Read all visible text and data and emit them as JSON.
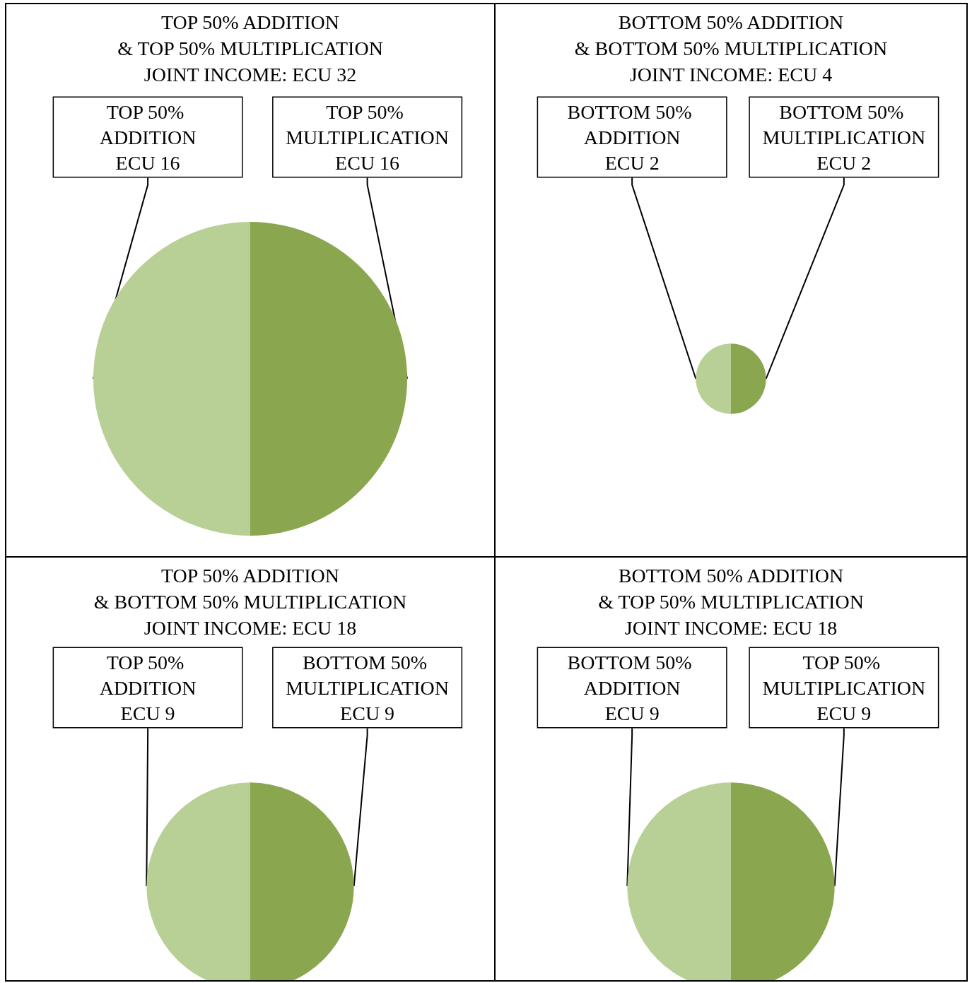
{
  "chart_data": [
    {
      "type": "pie",
      "title": "TOP 50% ADDITION\n& TOP 50% MULTIPLICATION\nJOINT INCOME: ECU 32",
      "categories": [
        "TOP 50% ADDITION",
        "TOP 50% MULTIPLICATION"
      ],
      "values": [
        16,
        16
      ],
      "value_labels": [
        "ECU 16",
        "ECU 16"
      ],
      "colors": [
        "#b8cf96",
        "#8aa64f"
      ],
      "legend": false
    },
    {
      "type": "pie",
      "title": "BOTTOM 50% ADDITION\n& BOTTOM 50% MULTIPLICATION\nJOINT INCOME: ECU 4",
      "categories": [
        "BOTTOM 50% ADDITION",
        "BOTTOM 50% MULTIPLICATION"
      ],
      "values": [
        2,
        2
      ],
      "value_labels": [
        "ECU 2",
        "ECU 2"
      ],
      "colors": [
        "#b8cf96",
        "#8aa64f"
      ],
      "legend": false
    },
    {
      "type": "pie",
      "title": "TOP 50% ADDITION\n& BOTTOM 50% MULTIPLICATION\nJOINT INCOME: ECU 18",
      "categories": [
        "TOP 50% ADDITION",
        "BOTTOM 50% MULTIPLICATION"
      ],
      "values": [
        9,
        9
      ],
      "value_labels": [
        "ECU 9",
        "ECU 9"
      ],
      "colors": [
        "#b8cf96",
        "#8aa64f"
      ],
      "legend": false
    },
    {
      "type": "pie",
      "title": "BOTTOM 50% ADDITION\n& TOP 50% MULTIPLICATION\nJOINT INCOME: ECU 18",
      "categories": [
        "BOTTOM 50% ADDITION",
        "TOP 50% MULTIPLICATION"
      ],
      "values": [
        9,
        9
      ],
      "value_labels": [
        "ECU 9",
        "ECU 9"
      ],
      "colors": [
        "#b8cf96",
        "#8aa64f"
      ],
      "legend": false
    }
  ]
}
